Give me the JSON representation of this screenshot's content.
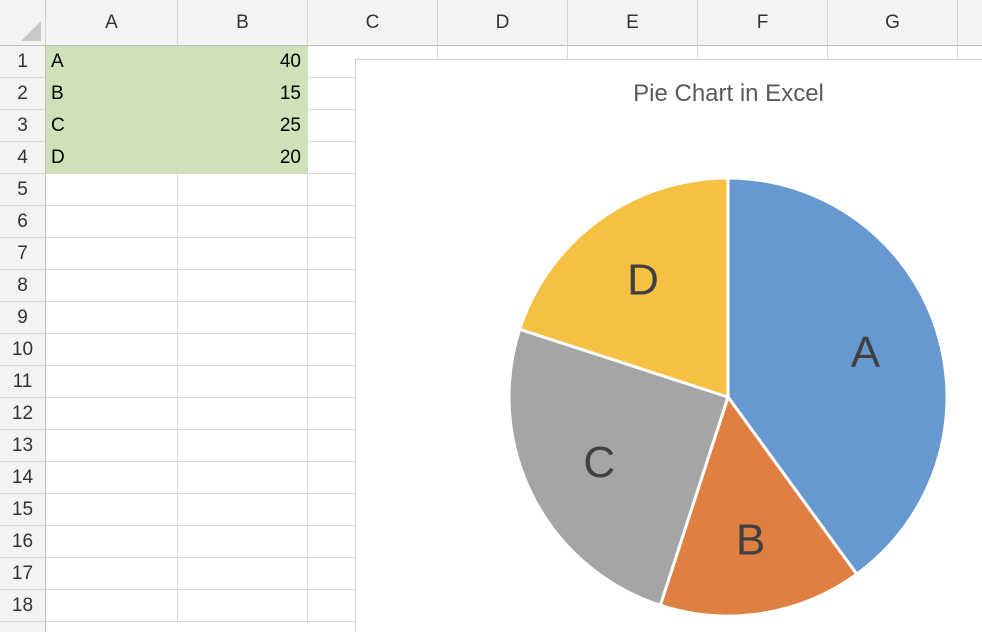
{
  "columns": [
    "A",
    "B",
    "C",
    "D",
    "E",
    "F",
    "G"
  ],
  "rows": [
    "1",
    "2",
    "3",
    "4",
    "5",
    "6",
    "7",
    "8",
    "9",
    "10",
    "11",
    "12",
    "13",
    "14",
    "15",
    "16",
    "17",
    "18"
  ],
  "table": [
    {
      "label": "A",
      "value": "40"
    },
    {
      "label": "B",
      "value": "15"
    },
    {
      "label": "C",
      "value": "25"
    },
    {
      "label": "D",
      "value": "20"
    }
  ],
  "chart_data": {
    "type": "pie",
    "title": "Pie Chart in Excel",
    "categories": [
      "A",
      "B",
      "C",
      "D"
    ],
    "values": [
      40,
      15,
      25,
      20
    ],
    "colors": [
      "#6799d0",
      "#e07f42",
      "#a5a5a5",
      "#f6c043"
    ],
    "label_position": "inside"
  }
}
